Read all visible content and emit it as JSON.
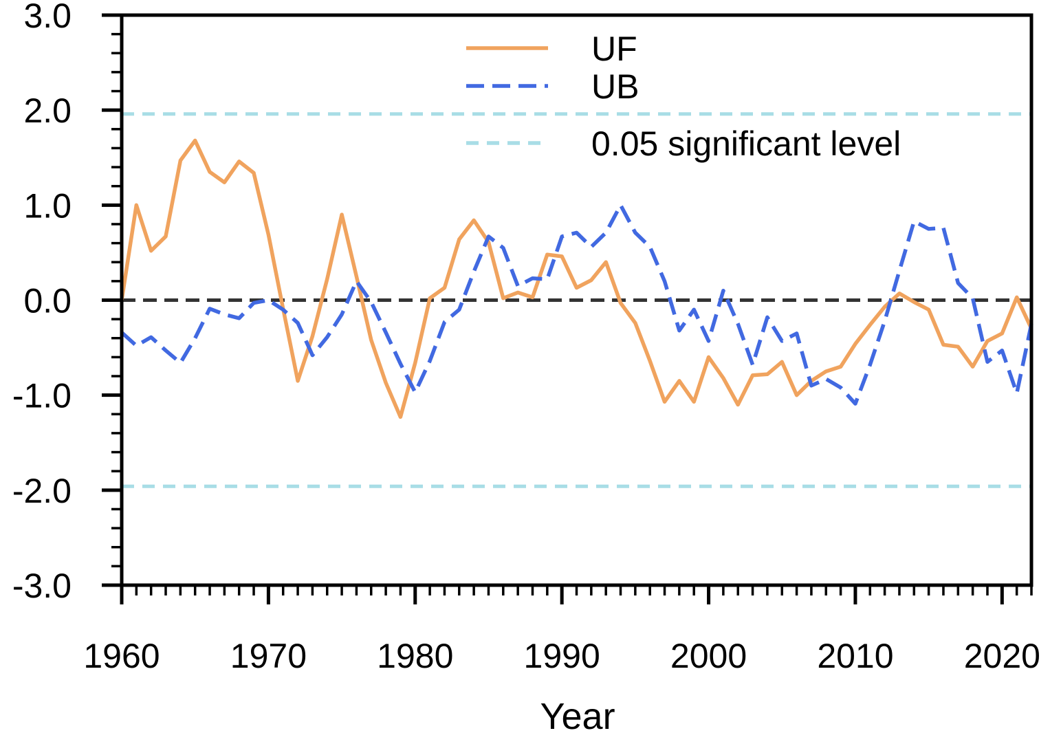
{
  "chart_data": {
    "type": "line",
    "title": "",
    "xlabel": "Year",
    "ylabel": "",
    "xlim": [
      1960,
      2022
    ],
    "ylim": [
      -3.0,
      3.0
    ],
    "x_ticks": [
      "1960",
      "1970",
      "1980",
      "1990",
      "2000",
      "2010",
      "2020"
    ],
    "y_ticks": [
      "3.0",
      "2.0",
      "1.0",
      "0.0",
      "-1.0",
      "-2.0",
      "-3.0"
    ],
    "x": [
      1960,
      1961,
      1962,
      1963,
      1964,
      1965,
      1966,
      1967,
      1968,
      1969,
      1970,
      1971,
      1972,
      1973,
      1974,
      1975,
      1976,
      1977,
      1978,
      1979,
      1980,
      1981,
      1982,
      1983,
      1984,
      1985,
      1986,
      1987,
      1988,
      1989,
      1990,
      1991,
      1992,
      1993,
      1994,
      1995,
      1996,
      1997,
      1998,
      1999,
      2000,
      2001,
      2002,
      2003,
      2004,
      2005,
      2006,
      2007,
      2008,
      2009,
      2010,
      2011,
      2012,
      2013,
      2014,
      2015,
      2016,
      2017,
      2018,
      2019,
      2020,
      2021,
      2022
    ],
    "series": [
      {
        "name": "UF",
        "style": "solid",
        "color": "#f0a35e",
        "values": [
          0.0,
          1.0,
          0.52,
          0.67,
          1.47,
          1.68,
          1.35,
          1.24,
          1.46,
          1.34,
          0.69,
          -0.09,
          -0.85,
          -0.38,
          0.22,
          0.9,
          0.25,
          -0.42,
          -0.87,
          -1.23,
          -0.66,
          0.02,
          0.13,
          0.64,
          0.84,
          0.61,
          0.02,
          0.08,
          0.03,
          0.48,
          0.46,
          0.13,
          0.21,
          0.4,
          -0.03,
          -0.24,
          -0.64,
          -1.07,
          -0.85,
          -1.07,
          -0.6,
          -0.82,
          -1.1,
          -0.79,
          -0.78,
          -0.65,
          -1.0,
          -0.85,
          -0.75,
          -0.7,
          -0.46,
          -0.26,
          -0.07,
          0.07,
          -0.02,
          -0.1,
          -0.47,
          -0.49,
          -0.7,
          -0.43,
          -0.35,
          0.03,
          -0.3
        ]
      },
      {
        "name": "UB",
        "style": "dashed",
        "color": "#4169e1",
        "values": [
          -0.34,
          -0.48,
          -0.39,
          -0.53,
          -0.66,
          -0.4,
          -0.09,
          -0.15,
          -0.19,
          -0.03,
          0.0,
          -0.1,
          -0.24,
          -0.58,
          -0.39,
          -0.15,
          0.2,
          -0.02,
          -0.34,
          -0.67,
          -0.97,
          -0.64,
          -0.23,
          -0.1,
          0.3,
          0.67,
          0.55,
          0.15,
          0.23,
          0.22,
          0.67,
          0.71,
          0.56,
          0.71,
          1.0,
          0.71,
          0.56,
          0.2,
          -0.32,
          -0.1,
          -0.43,
          0.1,
          -0.25,
          -0.68,
          -0.18,
          -0.43,
          -0.35,
          -0.9,
          -0.83,
          -0.92,
          -1.09,
          -0.68,
          -0.22,
          0.31,
          0.83,
          0.75,
          0.76,
          0.18,
          0.02,
          -0.65,
          -0.53,
          -0.98,
          -0.25
        ]
      }
    ],
    "reference_lines": [
      {
        "name": "0.05 significant level",
        "y": [
          1.96,
          -1.96
        ],
        "style": "dashed",
        "color": "#a8dde6"
      },
      {
        "name": "zero",
        "y": [
          0.0
        ],
        "style": "dashed",
        "color": "#333333"
      }
    ],
    "legend": {
      "position": "top-center",
      "entries": [
        {
          "label": "UF",
          "color": "#f0a35e",
          "style": "solid"
        },
        {
          "label": "UB",
          "color": "#4169e1",
          "style": "dashed"
        },
        {
          "label": "0.05 significant level",
          "color": "#a8dde6",
          "style": "dashed"
        }
      ]
    }
  }
}
